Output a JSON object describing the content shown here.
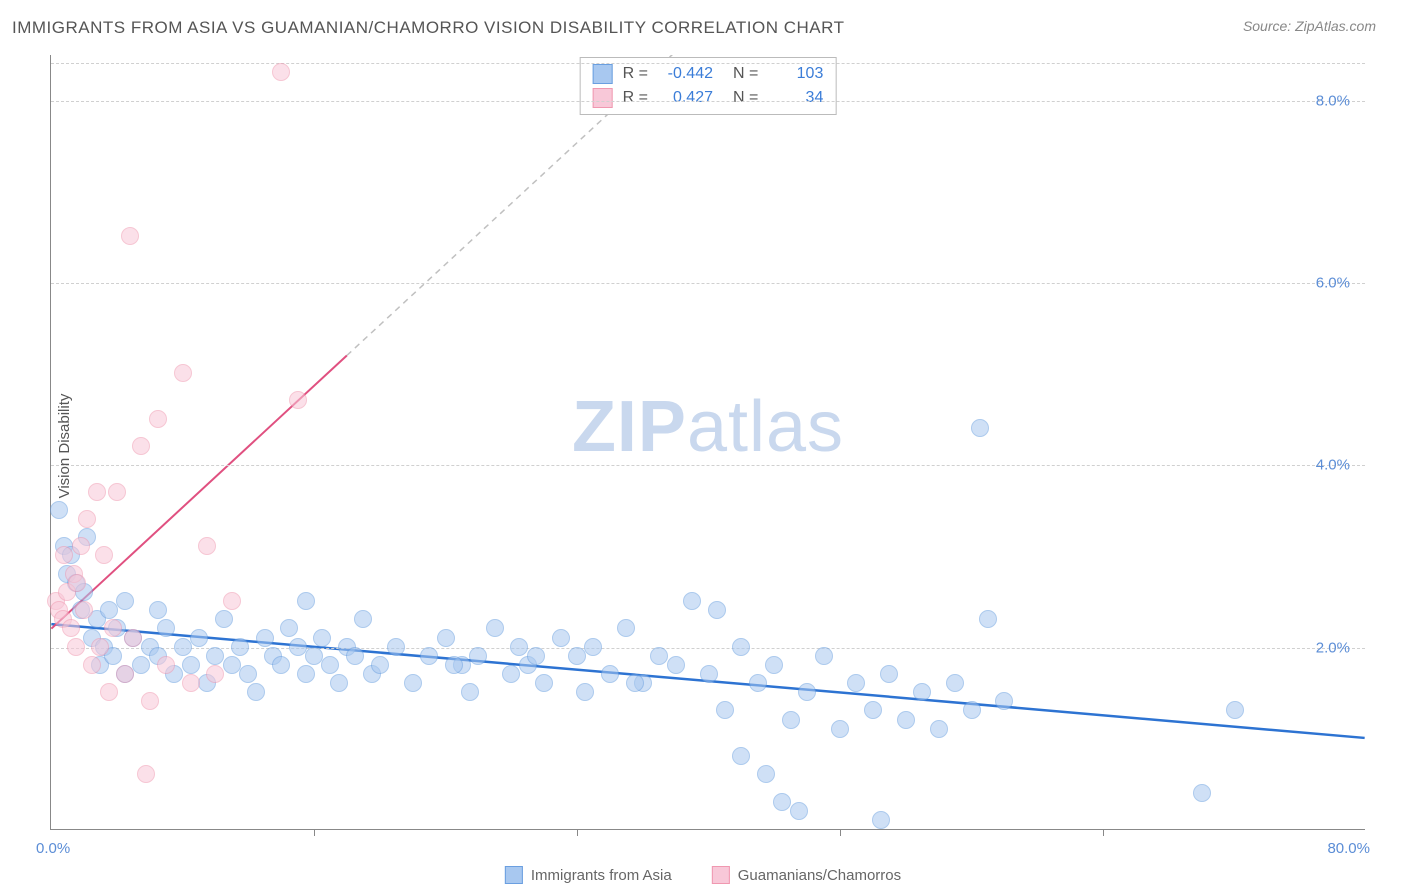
{
  "title": "IMMIGRANTS FROM ASIA VS GUAMANIAN/CHAMORRO VISION DISABILITY CORRELATION CHART",
  "source": "Source: ZipAtlas.com",
  "y_axis_label": "Vision Disability",
  "watermark_bold": "ZIP",
  "watermark_light": "atlas",
  "chart": {
    "type": "scatter",
    "xlim": [
      0,
      80
    ],
    "ylim": [
      0,
      8.5
    ],
    "x_ticks_major": [
      0,
      80
    ],
    "x_ticks_minor": [
      16,
      32,
      48,
      64
    ],
    "y_gridlines": [
      2.0,
      4.0,
      6.0,
      8.0
    ],
    "x_tick_labels": {
      "left": "0.0%",
      "right": "80.0%"
    },
    "y_tick_labels": [
      "2.0%",
      "4.0%",
      "6.0%",
      "8.0%"
    ],
    "background_color": "#ffffff",
    "grid_color": "#d0d0d0",
    "axis_color": "#888888",
    "marker_radius": 9,
    "marker_border_width": 1.5,
    "series": [
      {
        "name": "Immigrants from Asia",
        "fill_color": "#a8c8f0",
        "border_color": "#6a9fe0",
        "fill_opacity": 0.55,
        "R": "-0.442",
        "N": "103",
        "trend": {
          "x1": 0,
          "y1": 2.25,
          "x2": 80,
          "y2": 1.0,
          "color": "#2d73d2",
          "width": 2.5,
          "dash": "none"
        },
        "trend_ext": null,
        "data": [
          [
            0.5,
            3.5
          ],
          [
            0.8,
            3.1
          ],
          [
            1.0,
            2.8
          ],
          [
            1.2,
            3.0
          ],
          [
            1.5,
            2.7
          ],
          [
            1.8,
            2.4
          ],
          [
            2.0,
            2.6
          ],
          [
            2.2,
            3.2
          ],
          [
            2.5,
            2.1
          ],
          [
            2.8,
            2.3
          ],
          [
            3.0,
            1.8
          ],
          [
            3.2,
            2.0
          ],
          [
            3.5,
            2.4
          ],
          [
            3.8,
            1.9
          ],
          [
            4.0,
            2.2
          ],
          [
            4.5,
            1.7
          ],
          [
            5.0,
            2.1
          ],
          [
            5.5,
            1.8
          ],
          [
            6.0,
            2.0
          ],
          [
            6.5,
            1.9
          ],
          [
            7.0,
            2.2
          ],
          [
            7.5,
            1.7
          ],
          [
            8.0,
            2.0
          ],
          [
            8.5,
            1.8
          ],
          [
            9.0,
            2.1
          ],
          [
            9.5,
            1.6
          ],
          [
            10.0,
            1.9
          ],
          [
            10.5,
            2.3
          ],
          [
            11.0,
            1.8
          ],
          [
            11.5,
            2.0
          ],
          [
            12.0,
            1.7
          ],
          [
            12.5,
            1.5
          ],
          [
            13.0,
            2.1
          ],
          [
            13.5,
            1.9
          ],
          [
            14.0,
            1.8
          ],
          [
            14.5,
            2.2
          ],
          [
            15.0,
            2.0
          ],
          [
            15.5,
            1.7
          ],
          [
            16.0,
            1.9
          ],
          [
            16.5,
            2.1
          ],
          [
            17.0,
            1.8
          ],
          [
            17.5,
            1.6
          ],
          [
            18.0,
            2.0
          ],
          [
            18.5,
            1.9
          ],
          [
            19.0,
            2.3
          ],
          [
            19.5,
            1.7
          ],
          [
            20.0,
            1.8
          ],
          [
            21.0,
            2.0
          ],
          [
            22.0,
            1.6
          ],
          [
            23.0,
            1.9
          ],
          [
            24.0,
            2.1
          ],
          [
            25.0,
            1.8
          ],
          [
            25.5,
            1.5
          ],
          [
            26.0,
            1.9
          ],
          [
            27.0,
            2.2
          ],
          [
            28.0,
            1.7
          ],
          [
            28.5,
            2.0
          ],
          [
            29.0,
            1.8
          ],
          [
            30.0,
            1.6
          ],
          [
            31.0,
            2.1
          ],
          [
            32.0,
            1.9
          ],
          [
            32.5,
            1.5
          ],
          [
            33.0,
            2.0
          ],
          [
            34.0,
            1.7
          ],
          [
            35.0,
            2.2
          ],
          [
            36.0,
            1.6
          ],
          [
            37.0,
            1.9
          ],
          [
            38.0,
            1.8
          ],
          [
            39.0,
            2.5
          ],
          [
            40.0,
            1.7
          ],
          [
            40.5,
            2.4
          ],
          [
            41.0,
            1.3
          ],
          [
            42.0,
            2.0
          ],
          [
            43.0,
            1.6
          ],
          [
            44.0,
            1.8
          ],
          [
            45.0,
            1.2
          ],
          [
            46.0,
            1.5
          ],
          [
            47.0,
            1.9
          ],
          [
            48.0,
            1.1
          ],
          [
            49.0,
            1.6
          ],
          [
            50.0,
            1.3
          ],
          [
            51.0,
            1.7
          ],
          [
            52.0,
            1.2
          ],
          [
            53.0,
            1.5
          ],
          [
            54.0,
            1.1
          ],
          [
            55.0,
            1.6
          ],
          [
            56.0,
            1.3
          ],
          [
            56.5,
            4.4
          ],
          [
            57.0,
            2.3
          ],
          [
            58.0,
            1.4
          ],
          [
            42.0,
            0.8
          ],
          [
            43.5,
            0.6
          ],
          [
            44.5,
            0.3
          ],
          [
            45.5,
            0.2
          ],
          [
            50.5,
            0.1
          ],
          [
            70.0,
            0.4
          ],
          [
            72.0,
            1.3
          ],
          [
            15.5,
            2.5
          ],
          [
            24.5,
            1.8
          ],
          [
            29.5,
            1.9
          ],
          [
            35.5,
            1.6
          ],
          [
            4.5,
            2.5
          ],
          [
            6.5,
            2.4
          ]
        ]
      },
      {
        "name": "Guamanians/Chamorros",
        "fill_color": "#f8c8d8",
        "border_color": "#f098b0",
        "fill_opacity": 0.55,
        "R": "0.427",
        "N": "34",
        "trend": {
          "x1": 0,
          "y1": 2.2,
          "x2": 18,
          "y2": 5.2,
          "color": "#e05080",
          "width": 2,
          "dash": "none"
        },
        "trend_ext": {
          "x1": 18,
          "y1": 5.2,
          "x2": 42,
          "y2": 9.2,
          "color": "#c0c0c0",
          "width": 1.5,
          "dash": "6,5"
        },
        "data": [
          [
            0.3,
            2.5
          ],
          [
            0.5,
            2.4
          ],
          [
            0.7,
            2.3
          ],
          [
            0.8,
            3.0
          ],
          [
            1.0,
            2.6
          ],
          [
            1.2,
            2.2
          ],
          [
            1.4,
            2.8
          ],
          [
            1.5,
            2.0
          ],
          [
            1.6,
            2.7
          ],
          [
            1.8,
            3.1
          ],
          [
            2.0,
            2.4
          ],
          [
            2.2,
            3.4
          ],
          [
            2.5,
            1.8
          ],
          [
            2.8,
            3.7
          ],
          [
            3.0,
            2.0
          ],
          [
            3.2,
            3.0
          ],
          [
            3.5,
            1.5
          ],
          [
            3.8,
            2.2
          ],
          [
            4.0,
            3.7
          ],
          [
            4.5,
            1.7
          ],
          [
            5.0,
            2.1
          ],
          [
            5.5,
            4.2
          ],
          [
            6.0,
            1.4
          ],
          [
            6.5,
            4.5
          ],
          [
            7.0,
            1.8
          ],
          [
            8.0,
            5.0
          ],
          [
            8.5,
            1.6
          ],
          [
            9.5,
            3.1
          ],
          [
            10.0,
            1.7
          ],
          [
            11.0,
            2.5
          ],
          [
            14.0,
            8.3
          ],
          [
            15.0,
            4.7
          ],
          [
            4.8,
            6.5
          ],
          [
            5.8,
            0.6
          ]
        ]
      }
    ]
  },
  "legend_bottom": {
    "items": [
      {
        "label": "Immigrants from Asia",
        "fill": "#a8c8f0",
        "border": "#6a9fe0"
      },
      {
        "label": "Guamanians/Chamorros",
        "fill": "#f8c8d8",
        "border": "#f098b0"
      }
    ]
  },
  "legend_box": {
    "r_label": "R =",
    "n_label": "N ="
  }
}
